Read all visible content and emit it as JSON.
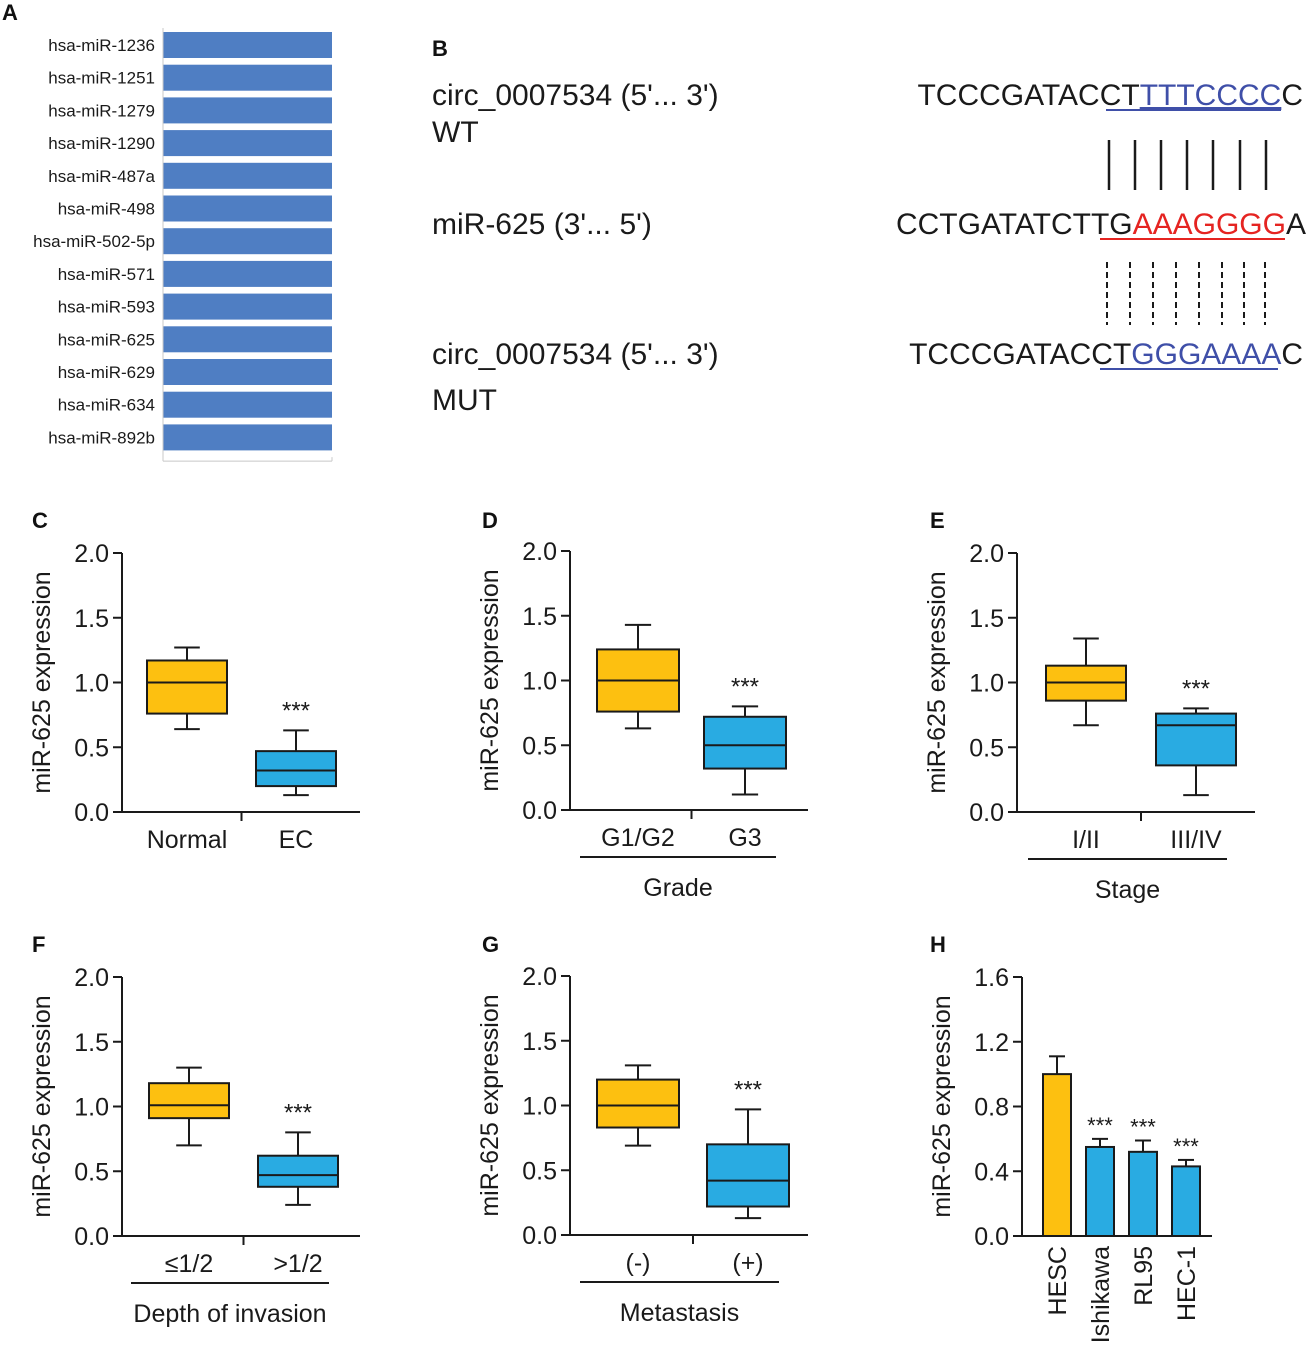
{
  "colors": {
    "orange": "#FDC010",
    "blue": "#29ABE2",
    "listbar": "#4F7EC3",
    "red": "#E52421",
    "navy": "#3F4FA8",
    "ink": "#1a1a1a"
  },
  "panel_labels": {
    "A": "A",
    "B": "B",
    "C": "C",
    "D": "D",
    "E": "E",
    "F": "F",
    "G": "G",
    "H": "H"
  },
  "panel_a": {
    "items": [
      "hsa-miR-1236",
      "hsa-miR-1251",
      "hsa-miR-1279",
      "hsa-miR-1290",
      "hsa-miR-487a",
      "hsa-miR-498",
      "hsa-miR-502-5p",
      "hsa-miR-571",
      "hsa-miR-593",
      "hsa-miR-625",
      "hsa-miR-629",
      "hsa-miR-634",
      "hsa-miR-892b"
    ]
  },
  "panel_b": {
    "wt_name": "circ_0007534 (5'... 3')",
    "wt_tag": "WT",
    "mir_name": "miR-625 (3'... 5')",
    "mut_name": "circ_0007534 (5'... 3')",
    "mut_tag": "MUT",
    "wt_seq": {
      "pre": "TCCCGATACCT",
      "site": "TTTCCCC",
      "post": "C"
    },
    "mir_seq": {
      "pre": "CCTGATATCTTG",
      "site": "AAAGGGG",
      "post": "A"
    },
    "mut_seq": {
      "pre": "TCCCGATACCT",
      "site": "GGGAAAA",
      "post": "C"
    }
  },
  "chart_data": [
    {
      "id": "C",
      "type": "box",
      "ylabel": "miR-625 expression",
      "ylim": [
        0,
        2
      ],
      "yticks": [
        "0.0",
        "0.5",
        "1.0",
        "1.5",
        "2.0"
      ],
      "categories": [
        "Normal",
        "EC"
      ],
      "group_label": "",
      "boxes": [
        {
          "min": 0.64,
          "q1": 0.76,
          "median": 1.0,
          "q3": 1.17,
          "max": 1.27
        },
        {
          "min": 0.13,
          "q1": 0.2,
          "median": 0.32,
          "q3": 0.47,
          "max": 0.63
        }
      ],
      "significance": [
        "",
        "***"
      ]
    },
    {
      "id": "D",
      "type": "box",
      "ylabel": "miR-625 expression",
      "ylim": [
        0,
        2
      ],
      "yticks": [
        "0.0",
        "0.5",
        "1.0",
        "1.5",
        "2.0"
      ],
      "categories": [
        "G1/G2",
        "G3"
      ],
      "group_label": "Grade",
      "boxes": [
        {
          "min": 0.63,
          "q1": 0.76,
          "median": 1.0,
          "q3": 1.24,
          "max": 1.43
        },
        {
          "min": 0.12,
          "q1": 0.32,
          "median": 0.5,
          "q3": 0.72,
          "max": 0.8
        }
      ],
      "significance": [
        "",
        "***"
      ]
    },
    {
      "id": "E",
      "type": "box",
      "ylabel": "miR-625 expression",
      "ylim": [
        0,
        2
      ],
      "yticks": [
        "0.0",
        "0.5",
        "1.0",
        "1.5",
        "2.0"
      ],
      "categories": [
        "I/II",
        "III/IV"
      ],
      "group_label": "Stage",
      "boxes": [
        {
          "min": 0.67,
          "q1": 0.86,
          "median": 1.0,
          "q3": 1.13,
          "max": 1.34
        },
        {
          "min": 0.13,
          "q1": 0.36,
          "median": 0.67,
          "q3": 0.76,
          "max": 0.8
        }
      ],
      "significance": [
        "",
        "***"
      ]
    },
    {
      "id": "F",
      "type": "box",
      "ylabel": "miR-625 expression",
      "ylim": [
        0,
        2
      ],
      "yticks": [
        "0.0",
        "0.5",
        "1.0",
        "1.5",
        "2.0"
      ],
      "categories": [
        "≤1/2",
        ">1/2"
      ],
      "group_label": "Depth of invasion",
      "boxes": [
        {
          "min": 0.7,
          "q1": 0.91,
          "median": 1.01,
          "q3": 1.18,
          "max": 1.3
        },
        {
          "min": 0.24,
          "q1": 0.38,
          "median": 0.47,
          "q3": 0.62,
          "max": 0.8
        }
      ],
      "significance": [
        "",
        "***"
      ]
    },
    {
      "id": "G",
      "type": "box",
      "ylabel": "miR-625 expression",
      "ylim": [
        0,
        2
      ],
      "yticks": [
        "0.0",
        "0.5",
        "1.0",
        "1.5",
        "2.0"
      ],
      "categories": [
        "(-)",
        "(+)"
      ],
      "group_label": "Metastasis",
      "boxes": [
        {
          "min": 0.69,
          "q1": 0.83,
          "median": 1.0,
          "q3": 1.2,
          "max": 1.31
        },
        {
          "min": 0.13,
          "q1": 0.22,
          "median": 0.42,
          "q3": 0.7,
          "max": 0.97
        }
      ],
      "significance": [
        "",
        "***"
      ]
    },
    {
      "id": "H",
      "type": "bar",
      "ylabel": "miR-625 expression",
      "ylim": [
        0,
        1.6
      ],
      "yticks": [
        "0.0",
        "0.4",
        "0.8",
        "1.2",
        "1.6"
      ],
      "categories": [
        "HESC",
        "Ishikawa",
        "RL95",
        "HEC-1"
      ],
      "values": [
        1.0,
        0.55,
        0.52,
        0.43
      ],
      "errors": [
        0.11,
        0.05,
        0.07,
        0.04
      ],
      "significance": [
        "",
        "***",
        "***",
        "***"
      ]
    }
  ]
}
